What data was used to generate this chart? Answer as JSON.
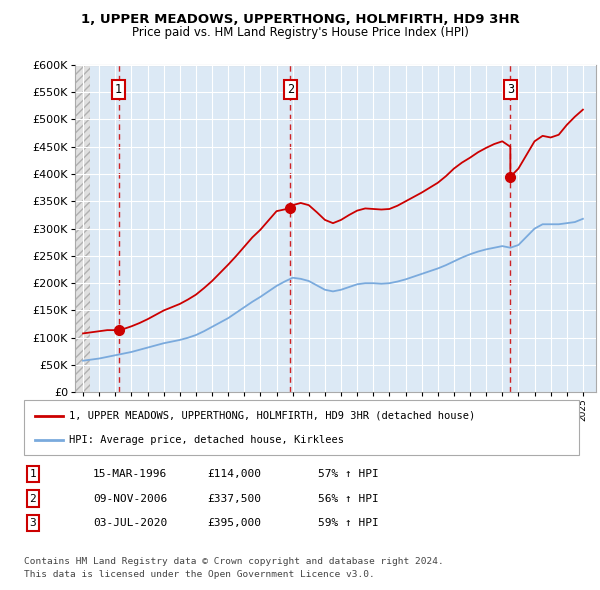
{
  "title": "1, UPPER MEADOWS, UPPERTHONG, HOLMFIRTH, HD9 3HR",
  "subtitle": "Price paid vs. HM Land Registry's House Price Index (HPI)",
  "sale_info": [
    [
      "1",
      "15-MAR-1996",
      "£114,000",
      "57% ↑ HPI"
    ],
    [
      "2",
      "09-NOV-2006",
      "£337,500",
      "56% ↑ HPI"
    ],
    [
      "3",
      "03-JUL-2020",
      "£395,000",
      "59% ↑ HPI"
    ]
  ],
  "legend_line1": "1, UPPER MEADOWS, UPPERTHONG, HOLMFIRTH, HD9 3HR (detached house)",
  "legend_line2": "HPI: Average price, detached house, Kirklees",
  "footer_line1": "Contains HM Land Registry data © Crown copyright and database right 2024.",
  "footer_line2": "This data is licensed under the Open Government Licence v3.0.",
  "sale_color": "#cc0000",
  "hpi_color": "#7aaadd",
  "background_color": "#dce9f5",
  "hatch_color": "#c8c8c8",
  "grid_color": "#ffffff",
  "ylim": [
    0,
    600000
  ],
  "yticks": [
    0,
    50000,
    100000,
    150000,
    200000,
    250000,
    300000,
    350000,
    400000,
    450000,
    500000,
    550000,
    600000
  ],
  "hpi_x": [
    1994.0,
    1994.5,
    1995.0,
    1995.5,
    1996.0,
    1996.5,
    1997.0,
    1997.5,
    1998.0,
    1998.5,
    1999.0,
    1999.5,
    2000.0,
    2000.5,
    2001.0,
    2001.5,
    2002.0,
    2002.5,
    2003.0,
    2003.5,
    2004.0,
    2004.5,
    2005.0,
    2005.5,
    2006.0,
    2006.5,
    2007.0,
    2007.5,
    2008.0,
    2008.5,
    2009.0,
    2009.5,
    2010.0,
    2010.5,
    2011.0,
    2011.5,
    2012.0,
    2012.5,
    2013.0,
    2013.5,
    2014.0,
    2014.5,
    2015.0,
    2015.5,
    2016.0,
    2016.5,
    2017.0,
    2017.5,
    2018.0,
    2018.5,
    2019.0,
    2019.5,
    2020.0,
    2020.5,
    2021.0,
    2021.5,
    2022.0,
    2022.5,
    2023.0,
    2023.5,
    2024.0,
    2024.5,
    2025.0
  ],
  "hpi_y": [
    58000,
    60000,
    62000,
    65000,
    68000,
    71000,
    74000,
    78000,
    82000,
    86000,
    90000,
    93000,
    96000,
    100000,
    105000,
    112000,
    120000,
    128000,
    136000,
    146000,
    156000,
    166000,
    175000,
    185000,
    195000,
    203000,
    210000,
    208000,
    204000,
    196000,
    188000,
    185000,
    188000,
    193000,
    198000,
    200000,
    200000,
    199000,
    200000,
    203000,
    207000,
    212000,
    217000,
    222000,
    227000,
    233000,
    240000,
    247000,
    253000,
    258000,
    262000,
    265000,
    268000,
    265000,
    270000,
    285000,
    300000,
    308000,
    308000,
    308000,
    310000,
    312000,
    318000
  ],
  "prop_x": [
    1994.0,
    1994.5,
    1995.0,
    1995.5,
    1996.21,
    1996.5,
    1997.0,
    1997.5,
    1998.0,
    1998.5,
    1999.0,
    1999.5,
    2000.0,
    2000.5,
    2001.0,
    2001.5,
    2002.0,
    2002.5,
    2003.0,
    2003.5,
    2004.0,
    2004.5,
    2005.0,
    2005.5,
    2006.0,
    2006.86,
    2007.0,
    2007.5,
    2008.0,
    2008.5,
    2009.0,
    2009.5,
    2010.0,
    2010.5,
    2011.0,
    2011.5,
    2012.0,
    2012.5,
    2013.0,
    2013.5,
    2014.0,
    2014.5,
    2015.0,
    2015.5,
    2016.0,
    2016.5,
    2017.0,
    2017.5,
    2018.0,
    2018.5,
    2019.0,
    2019.5,
    2020.0,
    2020.5,
    2020.5,
    2021.0,
    2021.5,
    2022.0,
    2022.5,
    2023.0,
    2023.5,
    2024.0,
    2024.5,
    2025.0
  ],
  "prop_y": [
    108000,
    110000,
    112000,
    114000,
    114000,
    116000,
    121000,
    127000,
    134000,
    142000,
    150000,
    156000,
    162000,
    170000,
    179000,
    191000,
    204000,
    219000,
    234000,
    250000,
    267000,
    284000,
    298000,
    315000,
    332000,
    337500,
    343000,
    347000,
    343000,
    330000,
    316000,
    310000,
    316000,
    325000,
    333000,
    337000,
    336000,
    335000,
    336000,
    342000,
    350000,
    358000,
    366000,
    375000,
    384000,
    396000,
    410000,
    421000,
    430000,
    440000,
    448000,
    455000,
    460000,
    450000,
    395000,
    410000,
    435000,
    460000,
    470000,
    467000,
    472000,
    490000,
    505000,
    518000
  ],
  "sale_years": [
    1996.21,
    2006.86,
    2020.5
  ],
  "sale_prices": [
    114000,
    337500,
    395000
  ],
  "sale_labels": [
    "1",
    "2",
    "3"
  ],
  "xlim": [
    1993.5,
    2025.8
  ],
  "hatch_xlim": [
    1993.5,
    1994.4
  ]
}
